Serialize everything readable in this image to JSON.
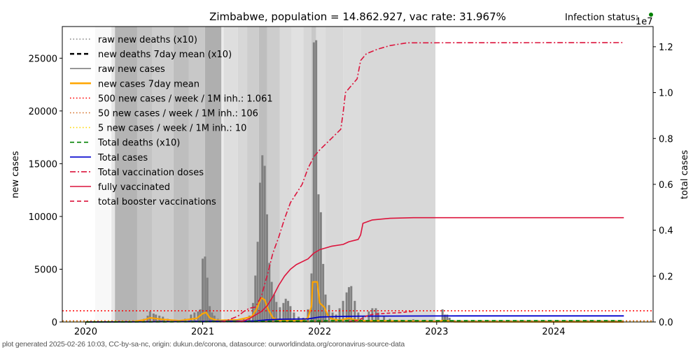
{
  "chart_data": {
    "type": "bar+line",
    "title": "Zimbabwe, population = 14.862.927, vac rate: 31.967%",
    "status_label": "Infection status:",
    "status_color": "#008000",
    "ylabel_left": "new cases",
    "ylabel_right": "total cases",
    "right_axis_multiplier": "1e7",
    "ylim_left": [
      0,
      28000
    ],
    "ylim_right": [
      0,
      12880000
    ],
    "xlim": [
      2019.8,
      2024.85
    ],
    "x_ticks": [
      {
        "value": 2020,
        "label": "2020"
      },
      {
        "value": 2021,
        "label": "2021"
      },
      {
        "value": 2022,
        "label": "2022"
      },
      {
        "value": 2023,
        "label": "2023"
      },
      {
        "value": 2024,
        "label": "2024"
      }
    ],
    "y_ticks_left": [
      {
        "value": 0,
        "label": "0"
      },
      {
        "value": 5000,
        "label": "5000"
      },
      {
        "value": 10000,
        "label": "10000"
      },
      {
        "value": 15000,
        "label": "15000"
      },
      {
        "value": 20000,
        "label": "20000"
      },
      {
        "value": 25000,
        "label": "25000"
      }
    ],
    "y_ticks_right": [
      {
        "value": 0,
        "label": "0.0"
      },
      {
        "value": 2000000,
        "label": "0.2"
      },
      {
        "value": 4000000,
        "label": "0.4"
      },
      {
        "value": 6000000,
        "label": "0.6"
      },
      {
        "value": 8000000,
        "label": "0.8"
      },
      {
        "value": 10000000,
        "label": "1.0"
      },
      {
        "value": 12000000,
        "label": "1.2"
      }
    ],
    "legend": [
      {
        "label": "raw new deaths (x10)",
        "color": "#808080",
        "style": "dotted"
      },
      {
        "label": "new deaths 7day mean (x10)",
        "color": "#000000",
        "style": "dashed-thick"
      },
      {
        "label": "raw new cases",
        "color": "#808080",
        "style": "solid"
      },
      {
        "label": "new cases 7day mean",
        "color": "#ffa500",
        "style": "solid-thick"
      },
      {
        "label": "500 new cases / week / 1M inh.: 1.061",
        "color": "#ff0000",
        "style": "dotted"
      },
      {
        "label": "50 new cases / week / 1M inh.: 106",
        "color": "#d2691e",
        "style": "dotted"
      },
      {
        "label": "5 new cases / week / 1M inh.: 10",
        "color": "#ffd700",
        "style": "dotted"
      },
      {
        "label": "Total deaths (x10)",
        "color": "#008000",
        "style": "dashed"
      },
      {
        "label": "Total cases",
        "color": "#0000cd",
        "style": "solid"
      },
      {
        "label": "Total vaccination doses",
        "color": "#dc143c",
        "style": "dashdot"
      },
      {
        "label": "fully vaccinated",
        "color": "#dc143c",
        "style": "solid"
      },
      {
        "label": "total booster vaccinations",
        "color": "#dc143c",
        "style": "dashed"
      }
    ],
    "thresholds": [
      {
        "name": "500-per-week",
        "value": 1061,
        "color": "#ff0000"
      },
      {
        "name": "50-per-week",
        "value": 106,
        "color": "#d2691e"
      },
      {
        "name": "5-per-week",
        "value": 10,
        "color": "#ffd700"
      }
    ],
    "background_bands": [
      {
        "x0": 2019.8,
        "x1": 2020.08,
        "gray": 255
      },
      {
        "x0": 2020.08,
        "x1": 2020.22,
        "gray": 248
      },
      {
        "x0": 2020.22,
        "x1": 2020.25,
        "gray": 230
      },
      {
        "x0": 2020.25,
        "x1": 2020.44,
        "gray": 180
      },
      {
        "x0": 2020.44,
        "x1": 2020.57,
        "gray": 195
      },
      {
        "x0": 2020.57,
        "x1": 2020.75,
        "gray": 205
      },
      {
        "x0": 2020.75,
        "x1": 2020.88,
        "gray": 190
      },
      {
        "x0": 2020.88,
        "x1": 2021.02,
        "gray": 200
      },
      {
        "x0": 2021.02,
        "x1": 2021.16,
        "gray": 175
      },
      {
        "x0": 2021.16,
        "x1": 2021.18,
        "gray": 235
      },
      {
        "x0": 2021.18,
        "x1": 2021.3,
        "gray": 222
      },
      {
        "x0": 2021.3,
        "x1": 2021.38,
        "gray": 215
      },
      {
        "x0": 2021.38,
        "x1": 2021.48,
        "gray": 205
      },
      {
        "x0": 2021.48,
        "x1": 2021.55,
        "gray": 190
      },
      {
        "x0": 2021.55,
        "x1": 2021.66,
        "gray": 205
      },
      {
        "x0": 2021.66,
        "x1": 2021.76,
        "gray": 218
      },
      {
        "x0": 2021.76,
        "x1": 2021.86,
        "gray": 225
      },
      {
        "x0": 2021.86,
        "x1": 2021.93,
        "gray": 215
      },
      {
        "x0": 2021.93,
        "x1": 2021.97,
        "gray": 200
      },
      {
        "x0": 2021.97,
        "x1": 2022.05,
        "gray": 222
      },
      {
        "x0": 2022.05,
        "x1": 2022.2,
        "gray": 216
      },
      {
        "x0": 2022.2,
        "x1": 2022.35,
        "gray": 220
      },
      {
        "x0": 2022.35,
        "x1": 2022.99,
        "gray": 216
      },
      {
        "x0": 2022.99,
        "x1": 2024.85,
        "gray": 255
      }
    ],
    "series": [
      {
        "name": "raw new cases",
        "type": "bar",
        "color": "#808080",
        "points": [
          [
            2020.3,
            20
          ],
          [
            2020.4,
            60
          ],
          [
            2020.45,
            120
          ],
          [
            2020.5,
            300
          ],
          [
            2020.53,
            600
          ],
          [
            2020.55,
            1000
          ],
          [
            2020.58,
            800
          ],
          [
            2020.6,
            700
          ],
          [
            2020.63,
            600
          ],
          [
            2020.66,
            500
          ],
          [
            2020.7,
            300
          ],
          [
            2020.75,
            150
          ],
          [
            2020.8,
            120
          ],
          [
            2020.85,
            300
          ],
          [
            2020.9,
            700
          ],
          [
            2020.93,
            900
          ],
          [
            2020.96,
            1000
          ],
          [
            2020.98,
            1200
          ],
          [
            2021.0,
            6000
          ],
          [
            2021.02,
            6200
          ],
          [
            2021.04,
            4200
          ],
          [
            2021.06,
            1500
          ],
          [
            2021.08,
            900
          ],
          [
            2021.1,
            600
          ],
          [
            2021.13,
            300
          ],
          [
            2021.2,
            150
          ],
          [
            2021.3,
            200
          ],
          [
            2021.35,
            300
          ],
          [
            2021.4,
            600
          ],
          [
            2021.43,
            1800
          ],
          [
            2021.45,
            4400
          ],
          [
            2021.47,
            7600
          ],
          [
            2021.49,
            13200
          ],
          [
            2021.51,
            15800
          ],
          [
            2021.53,
            14800
          ],
          [
            2021.55,
            10200
          ],
          [
            2021.57,
            5600
          ],
          [
            2021.59,
            3800
          ],
          [
            2021.61,
            2600
          ],
          [
            2021.63,
            1900
          ],
          [
            2021.66,
            1400
          ],
          [
            2021.69,
            1800
          ],
          [
            2021.71,
            2200
          ],
          [
            2021.73,
            2000
          ],
          [
            2021.75,
            1500
          ],
          [
            2021.78,
            900
          ],
          [
            2021.82,
            500
          ],
          [
            2021.86,
            400
          ],
          [
            2021.9,
            1200
          ],
          [
            2021.93,
            4600
          ],
          [
            2021.95,
            26500
          ],
          [
            2021.97,
            26700
          ],
          [
            2021.99,
            12100
          ],
          [
            2022.01,
            10400
          ],
          [
            2022.03,
            5500
          ],
          [
            2022.05,
            2600
          ],
          [
            2022.08,
            1600
          ],
          [
            2022.11,
            900
          ],
          [
            2022.14,
            700
          ],
          [
            2022.17,
            1300
          ],
          [
            2022.2,
            2000
          ],
          [
            2022.23,
            2800
          ],
          [
            2022.25,
            3300
          ],
          [
            2022.27,
            3400
          ],
          [
            2022.3,
            2000
          ],
          [
            2022.33,
            900
          ],
          [
            2022.37,
            500
          ],
          [
            2022.42,
            1000
          ],
          [
            2022.45,
            1300
          ],
          [
            2022.48,
            1300
          ],
          [
            2022.5,
            900
          ],
          [
            2022.55,
            500
          ],
          [
            2022.6,
            300
          ],
          [
            2022.7,
            200
          ],
          [
            2022.8,
            250
          ],
          [
            2022.9,
            200
          ],
          [
            2023.0,
            150
          ],
          [
            2023.05,
            1200
          ],
          [
            2023.07,
            700
          ],
          [
            2023.09,
            700
          ],
          [
            2023.11,
            400
          ],
          [
            2023.15,
            150
          ]
        ]
      },
      {
        "name": "new cases 7day mean",
        "type": "line",
        "color": "#ffa500",
        "points": [
          [
            2020.0,
            0
          ],
          [
            2020.4,
            20
          ],
          [
            2020.5,
            200
          ],
          [
            2020.55,
            400
          ],
          [
            2020.65,
            250
          ],
          [
            2020.8,
            120
          ],
          [
            2020.95,
            350
          ],
          [
            2021.0,
            800
          ],
          [
            2021.03,
            900
          ],
          [
            2021.06,
            400
          ],
          [
            2021.12,
            150
          ],
          [
            2021.3,
            200
          ],
          [
            2021.42,
            500
          ],
          [
            2021.46,
            1200
          ],
          [
            2021.5,
            2300
          ],
          [
            2021.53,
            2100
          ],
          [
            2021.56,
            1200
          ],
          [
            2021.6,
            400
          ],
          [
            2021.66,
            150
          ],
          [
            2021.85,
            120
          ],
          [
            2021.9,
            400
          ],
          [
            2021.93,
            1500
          ],
          [
            2021.94,
            3800
          ],
          [
            2021.98,
            3800
          ],
          [
            2022.0,
            1800
          ],
          [
            2022.04,
            1400
          ],
          [
            2022.07,
            600
          ],
          [
            2022.1,
            300
          ],
          [
            2022.17,
            150
          ],
          [
            2022.25,
            350
          ],
          [
            2022.3,
            200
          ],
          [
            2022.4,
            100
          ],
          [
            2022.5,
            120
          ],
          [
            2023.0,
            30
          ],
          [
            2023.06,
            150
          ],
          [
            2023.15,
            20
          ],
          [
            2024.6,
            5
          ]
        ]
      },
      {
        "name": "Total cases",
        "type": "line",
        "axis": "right",
        "color": "#0000cd",
        "points": [
          [
            2020.0,
            0
          ],
          [
            2020.5,
            5000
          ],
          [
            2021.0,
            25000
          ],
          [
            2021.1,
            35000
          ],
          [
            2021.45,
            45000
          ],
          [
            2021.55,
            90000
          ],
          [
            2021.65,
            120000
          ],
          [
            2021.9,
            135000
          ],
          [
            2022.0,
            215000
          ],
          [
            2022.2,
            245000
          ],
          [
            2022.4,
            255000
          ],
          [
            2023.0,
            262000
          ],
          [
            2023.2,
            264000
          ],
          [
            2024.6,
            266000
          ]
        ]
      },
      {
        "name": "Total deaths (x10)",
        "type": "line",
        "axis": "right",
        "color": "#008000",
        "points": [
          [
            2020.0,
            0
          ],
          [
            2020.5,
            2000
          ],
          [
            2021.0,
            8000
          ],
          [
            2021.1,
            15000
          ],
          [
            2021.45,
            17000
          ],
          [
            2021.6,
            40000
          ],
          [
            2021.9,
            47000
          ],
          [
            2022.1,
            54000
          ],
          [
            2022.5,
            56000
          ],
          [
            2024.6,
            57500
          ]
        ]
      },
      {
        "name": "Total vaccination doses",
        "type": "line",
        "axis": "right",
        "color": "#dc143c",
        "points": [
          [
            2021.15,
            0
          ],
          [
            2021.2,
            50000
          ],
          [
            2021.3,
            250000
          ],
          [
            2021.35,
            450000
          ],
          [
            2021.4,
            600000
          ],
          [
            2021.45,
            650000
          ],
          [
            2021.5,
            1100000
          ],
          [
            2021.55,
            2000000
          ],
          [
            2021.6,
            3000000
          ],
          [
            2021.65,
            3700000
          ],
          [
            2021.7,
            4500000
          ],
          [
            2021.75,
            5200000
          ],
          [
            2021.8,
            5600000
          ],
          [
            2021.85,
            6000000
          ],
          [
            2021.9,
            6700000
          ],
          [
            2021.95,
            7200000
          ],
          [
            2022.0,
            7500000
          ],
          [
            2022.1,
            8000000
          ],
          [
            2022.18,
            8400000
          ],
          [
            2022.2,
            9100000
          ],
          [
            2022.22,
            10000000
          ],
          [
            2022.27,
            10300000
          ],
          [
            2022.32,
            10600000
          ],
          [
            2022.35,
            11400000
          ],
          [
            2022.4,
            11700000
          ],
          [
            2022.5,
            11900000
          ],
          [
            2022.6,
            12050000
          ],
          [
            2022.75,
            12170000
          ],
          [
            2024.6,
            12180000
          ]
        ]
      },
      {
        "name": "fully vaccinated",
        "type": "line",
        "axis": "right",
        "color": "#dc143c",
        "points": [
          [
            2021.28,
            0
          ],
          [
            2021.35,
            50000
          ],
          [
            2021.4,
            150000
          ],
          [
            2021.45,
            300000
          ],
          [
            2021.5,
            450000
          ],
          [
            2021.55,
            700000
          ],
          [
            2021.6,
            1100000
          ],
          [
            2021.65,
            1600000
          ],
          [
            2021.7,
            2000000
          ],
          [
            2021.75,
            2300000
          ],
          [
            2021.8,
            2500000
          ],
          [
            2021.9,
            2750000
          ],
          [
            2021.95,
            3000000
          ],
          [
            2022.0,
            3150000
          ],
          [
            2022.1,
            3300000
          ],
          [
            2022.2,
            3380000
          ],
          [
            2022.25,
            3500000
          ],
          [
            2022.33,
            3600000
          ],
          [
            2022.35,
            3800000
          ],
          [
            2022.37,
            4300000
          ],
          [
            2022.45,
            4450000
          ],
          [
            2022.6,
            4520000
          ],
          [
            2022.8,
            4545000
          ],
          [
            2024.6,
            4545000
          ]
        ]
      },
      {
        "name": "total booster vaccinations",
        "type": "line",
        "axis": "right",
        "color": "#dc143c",
        "points": [
          [
            2022.25,
            0
          ],
          [
            2022.33,
            80000
          ],
          [
            2022.37,
            170000
          ],
          [
            2022.4,
            260000
          ],
          [
            2022.45,
            330000
          ],
          [
            2022.55,
            370000
          ],
          [
            2022.7,
            410000
          ],
          [
            2022.75,
            440000
          ],
          [
            2022.8,
            450000
          ]
        ]
      }
    ]
  },
  "footer": "plot generated 2025-02-26 10:03, CC-by-sa-nc, origin: dukun.de/corona, datasource: ourworldindata.org/coronavirus-source-data"
}
